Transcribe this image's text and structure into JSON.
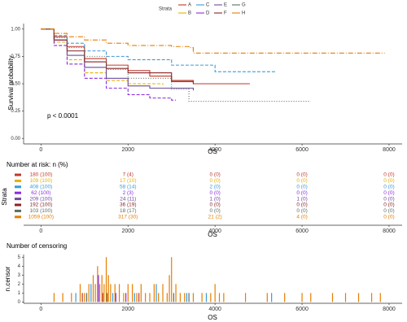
{
  "chart_data": [
    {
      "type": "line",
      "legend_title": "Strata",
      "legend": "top",
      "ylabel": "Survival probability",
      "xlabel": "OS",
      "annotation": "p < 0.0001",
      "xlim": [
        -400,
        8300
      ],
      "ylim": [
        -0.05,
        1.05
      ],
      "xticks": [
        0,
        2000,
        4000,
        6000,
        8000
      ],
      "yticks": [
        {
          "value": 0,
          "label": "0.00"
        },
        {
          "value": 0.25,
          "label": "0.25"
        },
        {
          "value": 0.5,
          "label": "0.50"
        },
        {
          "value": 0.75,
          "label": "0.75"
        },
        {
          "value": 1,
          "label": "1.00"
        }
      ],
      "series": [
        {
          "name": "A",
          "color": "#c0392b",
          "dash": "",
          "x": [
            0,
            300,
            600,
            1000,
            1500,
            2000,
            2500,
            3000,
            3500,
            4800
          ],
          "values": [
            1,
            0.93,
            0.84,
            0.73,
            0.67,
            0.62,
            0.57,
            0.53,
            0.5,
            0.5
          ]
        },
        {
          "name": "B",
          "color": "#e6b000",
          "dash": "4,2",
          "x": [
            0,
            300,
            600,
            1000,
            1500,
            2000,
            2800
          ],
          "values": [
            1,
            0.88,
            0.72,
            0.6,
            0.53,
            0.5,
            0.49
          ]
        },
        {
          "name": "C",
          "color": "#3a9ad9",
          "dash": "4,2",
          "x": [
            0,
            300,
            600,
            1000,
            1500,
            2000,
            3000,
            4000,
            5400
          ],
          "values": [
            1,
            0.94,
            0.87,
            0.8,
            0.75,
            0.72,
            0.67,
            0.61,
            0.61
          ]
        },
        {
          "name": "D",
          "color": "#8a2be2",
          "dash": "4,2",
          "x": [
            0,
            300,
            600,
            1000,
            1500,
            2000,
            2500,
            3000,
            3100
          ],
          "values": [
            1,
            0.85,
            0.68,
            0.55,
            0.46,
            0.4,
            0.37,
            0.35,
            0.35
          ]
        },
        {
          "name": "E",
          "color": "#6a4c9c",
          "dash": "",
          "x": [
            0,
            300,
            600,
            1000,
            1500,
            2000,
            2500,
            3500
          ],
          "values": [
            1,
            0.9,
            0.76,
            0.65,
            0.55,
            0.48,
            0.46,
            0.44
          ]
        },
        {
          "name": "F",
          "color": "#8b2323",
          "dash": "",
          "x": [
            0,
            300,
            600,
            1000,
            1500,
            2000,
            3000,
            3500
          ],
          "values": [
            1,
            0.9,
            0.8,
            0.7,
            0.64,
            0.6,
            0.52,
            0.5
          ]
        },
        {
          "name": "G",
          "color": "#5a6e66",
          "dash": "1,2",
          "x": [
            0,
            300,
            600,
            1000,
            1500,
            2000,
            3000,
            3400,
            6200
          ],
          "values": [
            1,
            0.92,
            0.83,
            0.75,
            0.63,
            0.55,
            0.45,
            0.34,
            0.34
          ]
        },
        {
          "name": "H",
          "color": "#e67e00",
          "dash": "6,2,1,2",
          "x": [
            0,
            300,
            600,
            1000,
            1500,
            2000,
            3000,
            3400,
            3500,
            7900
          ],
          "values": [
            1,
            0.96,
            0.93,
            0.9,
            0.87,
            0.85,
            0.84,
            0.83,
            0.78,
            0.78
          ]
        }
      ]
    },
    {
      "type": "table",
      "title": "Number at risk: n (%)",
      "ylabel": "Strata",
      "xlabel": "OS",
      "xlim": [
        -400,
        8300
      ],
      "xticks": [
        0,
        2000,
        4000,
        6000,
        8000
      ],
      "rows": [
        {
          "color": "#c0392b",
          "cells": [
            "180 (100)",
            "7 (4)",
            "0 (0)",
            "0 (0)",
            "0 (0)"
          ]
        },
        {
          "color": "#e6b000",
          "cells": [
            "109 (100)",
            "17 (10)",
            "0 (0)",
            "0 (0)",
            "0 (0)"
          ]
        },
        {
          "color": "#3a9ad9",
          "cells": [
            "408 (100)",
            "58 (14)",
            "2 (0)",
            "0 (0)",
            "0 (0)"
          ]
        },
        {
          "color": "#8a2be2",
          "cells": [
            "62 (100)",
            "2 (3)",
            "0 (0)",
            "0 (0)",
            "0 (0)"
          ]
        },
        {
          "color": "#6a4c9c",
          "cells": [
            "209 (100)",
            "24 (11)",
            "1 (0)",
            "1 (0)",
            "0 (0)"
          ]
        },
        {
          "color": "#8b2323",
          "cells": [
            "192 (100)",
            "36 (19)",
            "0 (0)",
            "0 (0)",
            "0 (0)"
          ]
        },
        {
          "color": "#5a6e66",
          "cells": [
            "103 (100)",
            "18 (17)",
            "0 (0)",
            "0 (0)",
            "0 (0)"
          ]
        },
        {
          "color": "#e67e00",
          "cells": [
            "1059 (100)",
            "317 (30)",
            "21 (2)",
            "4 (0)",
            "0 (0)"
          ]
        }
      ]
    },
    {
      "type": "bar",
      "title": "Number of censoring",
      "ylabel": "n.censor",
      "xlabel": "OS",
      "xlim": [
        -400,
        8300
      ],
      "ylim": [
        -0.15,
        5.3
      ],
      "xticks": [
        0,
        2000,
        4000,
        6000,
        8000
      ],
      "yticks": [
        0,
        1,
        2,
        3,
        4,
        5
      ],
      "series": [
        {
          "name": "H",
          "color": "#e67e00",
          "x": [
            300,
            500,
            700,
            900,
            1000,
            1100,
            1200,
            1250,
            1300,
            1350,
            1400,
            1450,
            1500,
            1550,
            1600,
            1700,
            1800,
            1900,
            2000,
            2100,
            2200,
            2300,
            2400,
            2500,
            2600,
            2700,
            2800,
            2900,
            2950,
            3000,
            3100,
            3200,
            3300,
            3500,
            3700,
            3900,
            4000,
            4100,
            4200,
            4700,
            5200,
            5600,
            6000,
            6200,
            6700,
            7000,
            7300,
            7600,
            7800
          ],
          "values": [
            1,
            1,
            1,
            2,
            1,
            2,
            3,
            2,
            4,
            2,
            3,
            2,
            5,
            3,
            2,
            2,
            2,
            1,
            2,
            2,
            1,
            2,
            1,
            1,
            2,
            1,
            2,
            1,
            3,
            5,
            2,
            1,
            1,
            1,
            1,
            1,
            2,
            1,
            1,
            1,
            1,
            1,
            1,
            1,
            1,
            1,
            1,
            1,
            1
          ]
        },
        {
          "name": "C",
          "color": "#3a9ad9",
          "x": [
            800,
            1150,
            1650,
            2150,
            2650,
            3350,
            3800,
            5300
          ],
          "values": [
            1,
            2,
            1,
            1,
            2,
            1,
            1,
            1
          ]
        },
        {
          "name": "G",
          "color": "#5a6e66",
          "x": [
            1050,
            1520,
            3050,
            3400
          ],
          "values": [
            1,
            1,
            1,
            1
          ]
        },
        {
          "name": "A",
          "color": "#c0392b",
          "x": [
            950,
            1420,
            2250
          ],
          "values": [
            1,
            1,
            1
          ]
        },
        {
          "name": "D",
          "color": "#8a2be2",
          "x": [
            1320,
            1720,
            1950
          ],
          "values": [
            3,
            1,
            1
          ]
        }
      ]
    }
  ]
}
